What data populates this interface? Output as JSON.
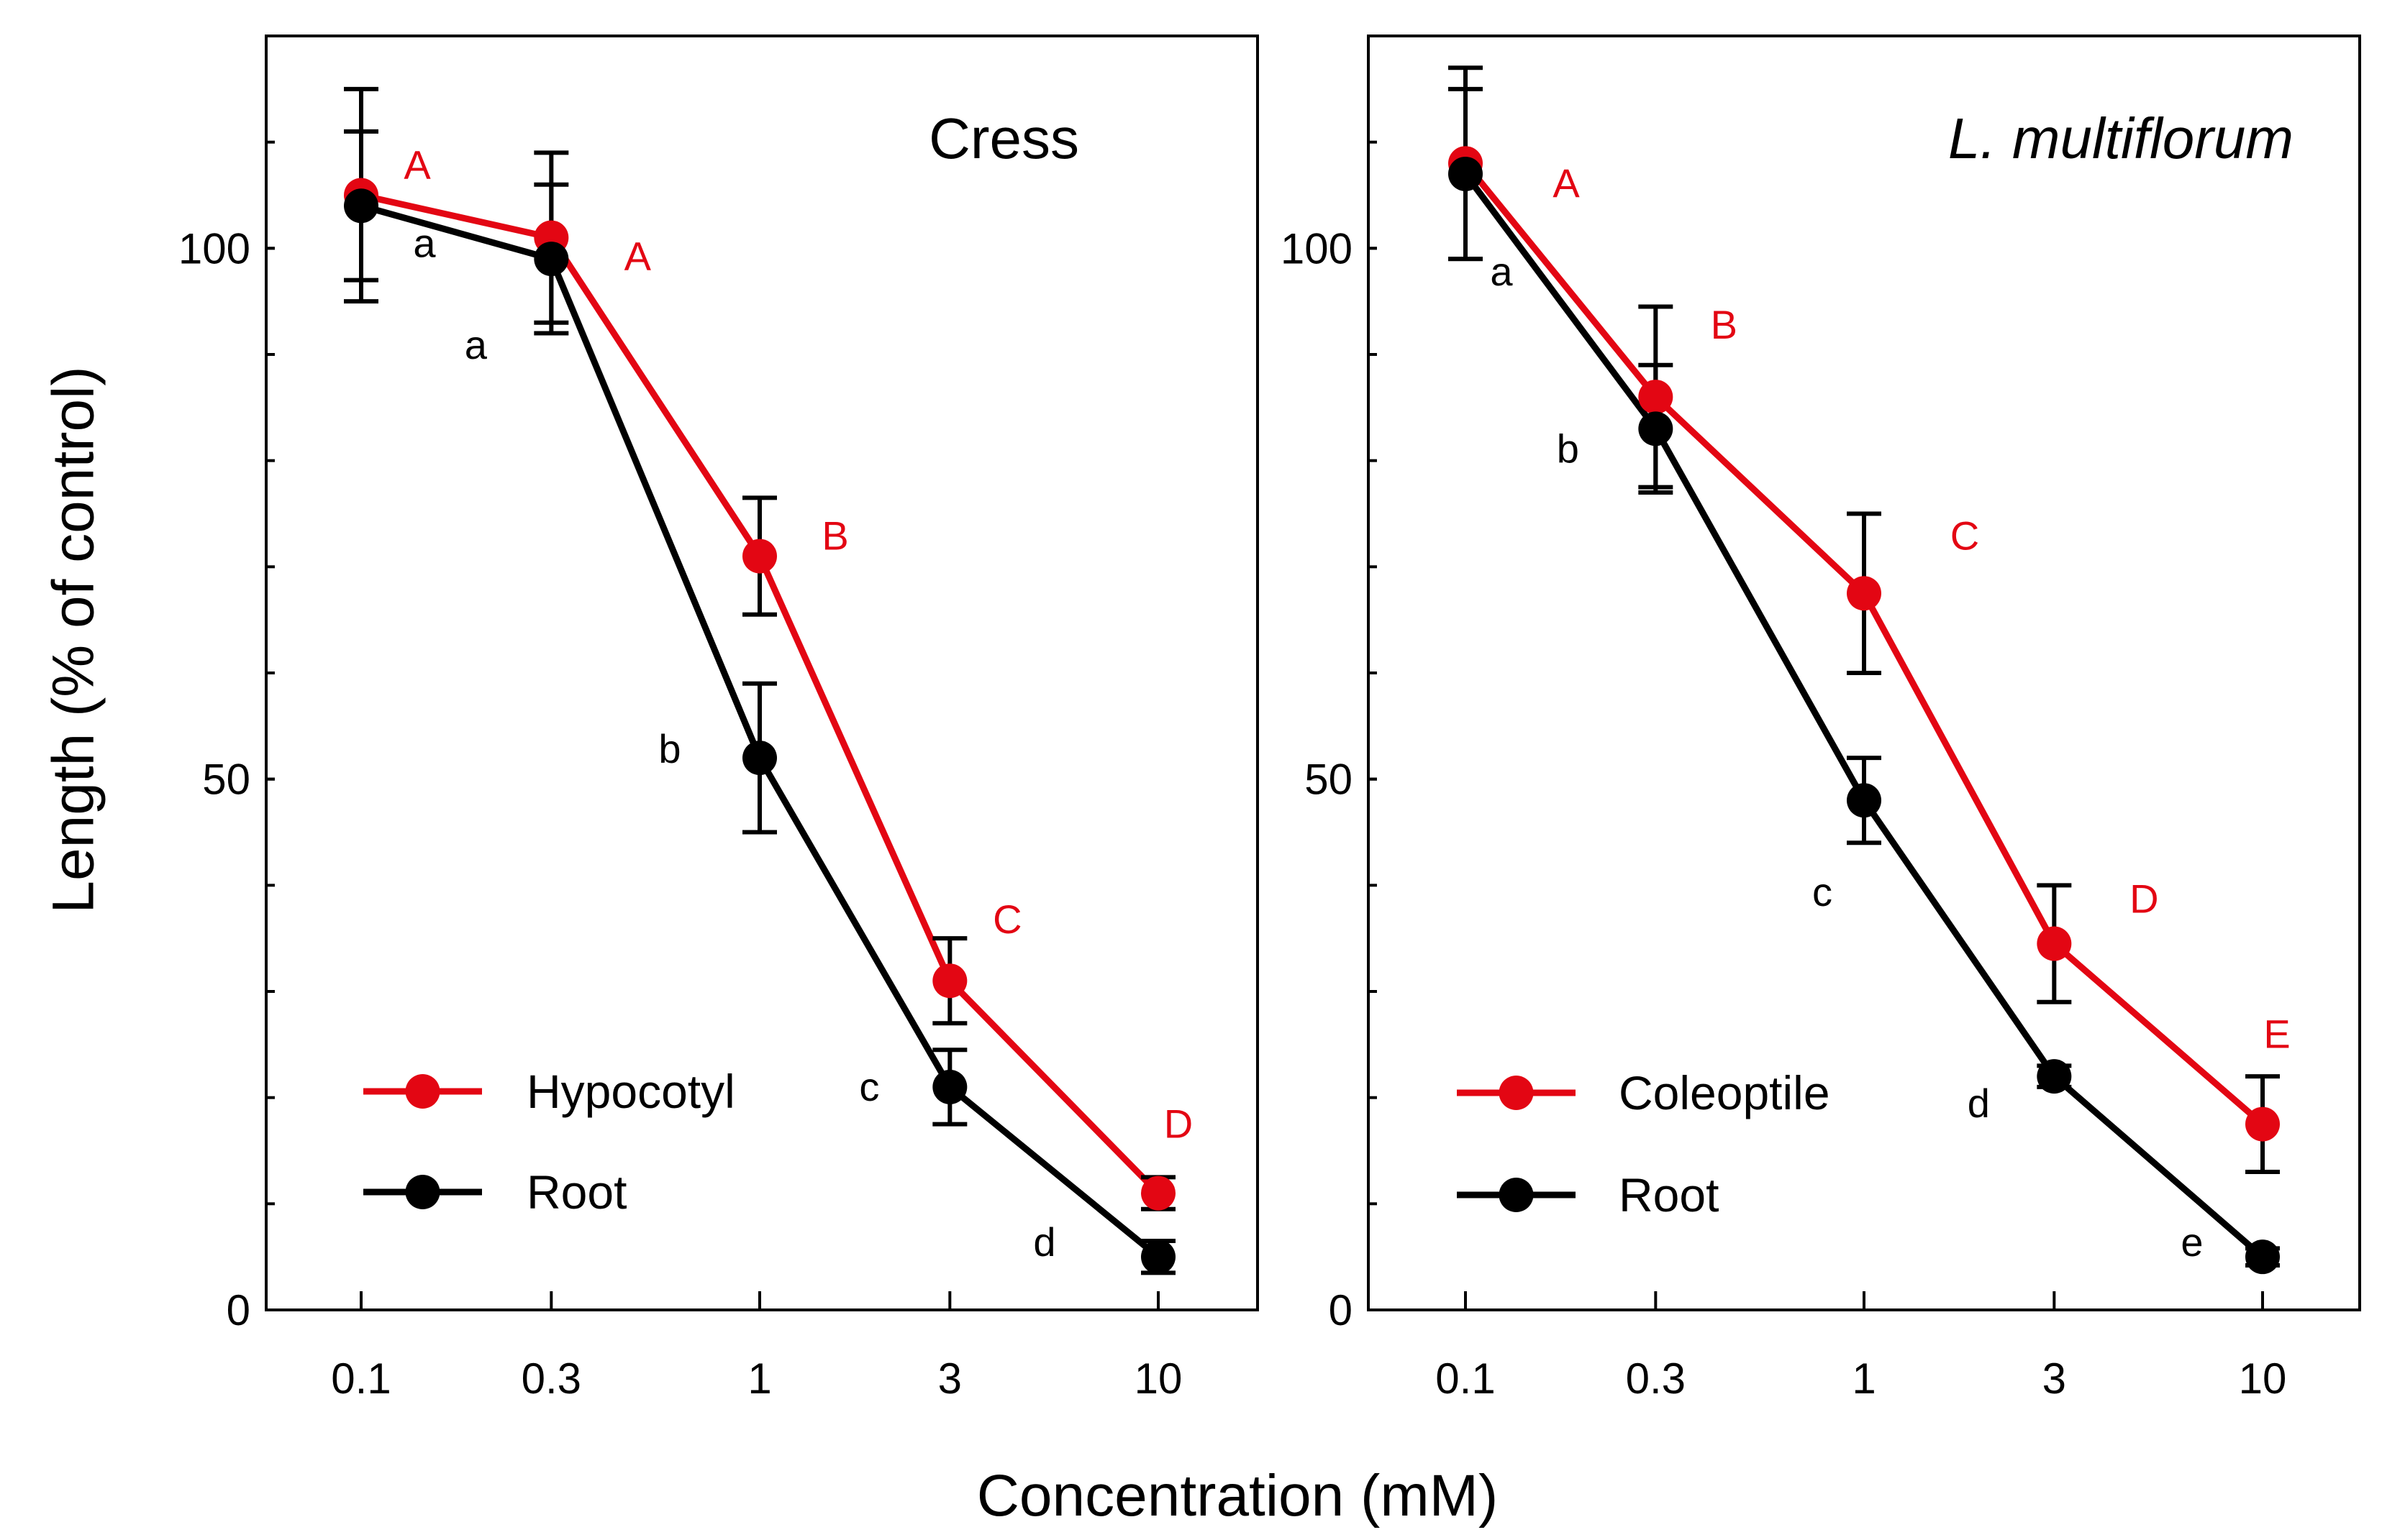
{
  "chart_data": [
    {
      "type": "line",
      "title": "Cress",
      "title_style": "normal",
      "xscale": "log",
      "categories": [
        "0.1",
        "0.3",
        "1",
        "3",
        "10"
      ],
      "x": [
        0.1,
        0.3,
        1,
        3,
        10
      ],
      "ylim": [
        0,
        120
      ],
      "yticks": [
        0,
        50,
        100
      ],
      "ytick_labels": [
        "0",
        "50",
        "100"
      ],
      "ylabel": "Length (% of control)",
      "legend_position": "bottom-left",
      "series": [
        {
          "name": "Hypocotyl",
          "color": "#e30613",
          "values": [
            105,
            101,
            71,
            31,
            11
          ],
          "errors": [
            10,
            8,
            5.5,
            4,
            1.5
          ],
          "letters": [
            "A",
            "A",
            "B",
            "C",
            "D"
          ]
        },
        {
          "name": "Root",
          "color": "#000000",
          "values": [
            104,
            99,
            52,
            21,
            5
          ],
          "errors": [
            7,
            7,
            7,
            3.5,
            1.5
          ],
          "letters": [
            "a",
            "a",
            "b",
            "c",
            "d"
          ]
        }
      ]
    },
    {
      "type": "line",
      "title": "L. multiflorum",
      "title_style": "italic",
      "xscale": "log",
      "categories": [
        "0.1",
        "0.3",
        "1",
        "3",
        "10"
      ],
      "x": [
        0.1,
        0.3,
        1,
        3,
        10
      ],
      "ylim": [
        0,
        120
      ],
      "yticks": [
        0,
        50,
        100
      ],
      "ytick_labels": [
        "0",
        "50",
        "100"
      ],
      "legend_position": "bottom-left",
      "series": [
        {
          "name": "Coleoptile",
          "color": "#e30613",
          "values": [
            108,
            86,
            67.5,
            34.5,
            17.5
          ],
          "errors": [
            9,
            8.5,
            7.5,
            5.5,
            4.5
          ],
          "letters": [
            "A",
            "B",
            "C",
            "D",
            "E"
          ]
        },
        {
          "name": "Root",
          "color": "#000000",
          "values": [
            107,
            83,
            48,
            22,
            5
          ],
          "errors": [
            8,
            6,
            4,
            1,
            0.8
          ],
          "letters": [
            "a",
            "b",
            "c",
            "d",
            "e"
          ]
        }
      ]
    }
  ],
  "xlabel": "Concentration (mM)"
}
